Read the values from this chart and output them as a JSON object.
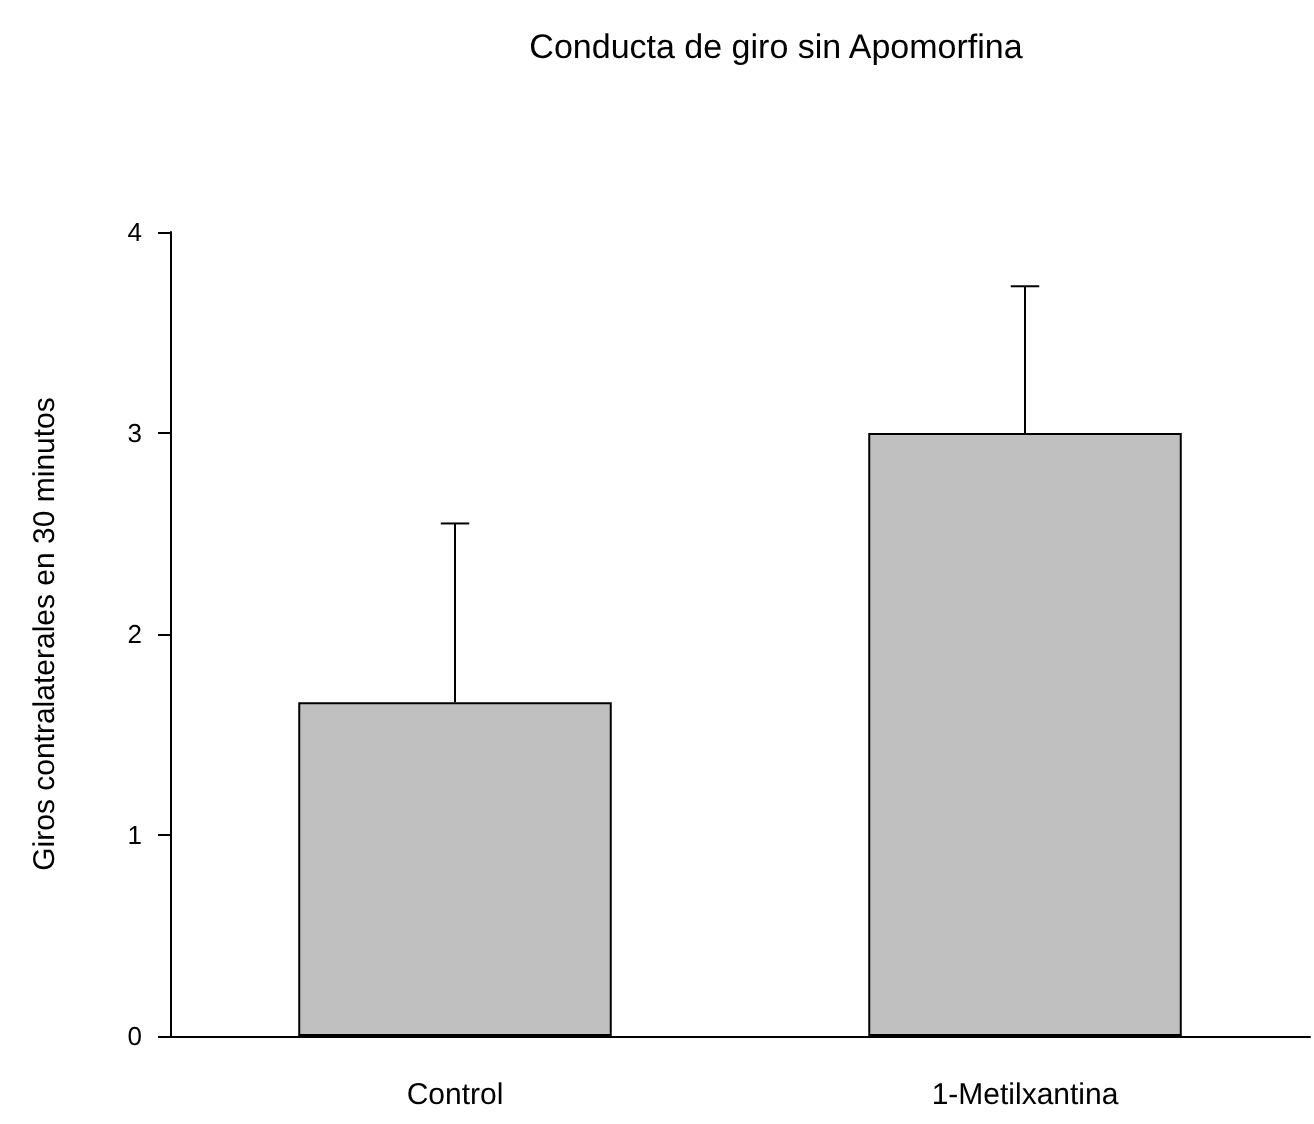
{
  "chart_data": {
    "type": "bar",
    "title": "Conducta de giro sin Apomorfina",
    "ylabel": "Giros contralaterales en 30 minutos",
    "categories": [
      "Control",
      "1-Metilxantina"
    ],
    "values": [
      1.66,
      3.0
    ],
    "color": "#c0c0c0",
    "errors": [
      [
        1.66,
        2.55
      ],
      [
        3.0,
        3.73
      ]
    ],
    "ylim": [
      0,
      4
    ],
    "yticks": [
      0,
      1,
      2,
      3,
      4
    ],
    "grid": false
  }
}
